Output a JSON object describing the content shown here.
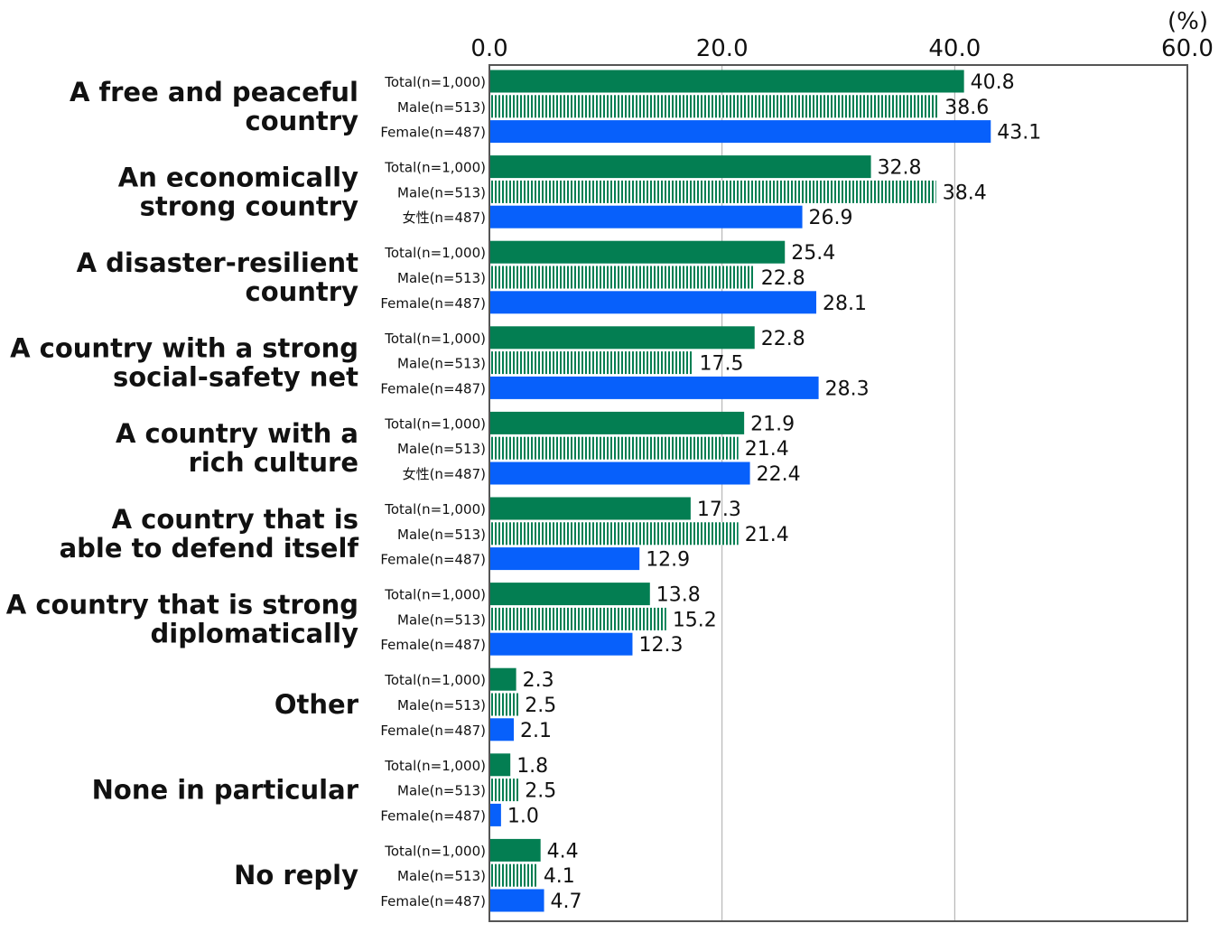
{
  "chart_data": {
    "type": "bar",
    "orientation": "horizontal",
    "unit": "(%)",
    "xlim": [
      0,
      60
    ],
    "ticks": [
      "0.0",
      "20.0",
      "40.0",
      "60.0"
    ],
    "tick_values": [
      0,
      20,
      40,
      60
    ],
    "grid": true,
    "colors": {
      "total": "#037e52",
      "male": "#037e52",
      "female": "#0760fb"
    },
    "categories": [
      {
        "label_lines": [
          "A free and peaceful",
          "country"
        ],
        "rows": [
          {
            "group": "total",
            "label": "Total(n=1,000)",
            "value": 40.8,
            "value_text": "40.8"
          },
          {
            "group": "male",
            "label": "Male(n=513)",
            "value": 38.6,
            "value_text": "38.6"
          },
          {
            "group": "female",
            "label": "Female(n=487)",
            "value": 43.1,
            "value_text": "43.1"
          }
        ]
      },
      {
        "label_lines": [
          "An economically",
          "strong country"
        ],
        "rows": [
          {
            "group": "total",
            "label": "Total(n=1,000)",
            "value": 32.8,
            "value_text": "32.8"
          },
          {
            "group": "male",
            "label": "Male(n=513)",
            "value": 38.4,
            "value_text": "38.4"
          },
          {
            "group": "female",
            "label": "女性(n=487)",
            "value": 26.9,
            "value_text": "26.9"
          }
        ]
      },
      {
        "label_lines": [
          "A disaster-resilient",
          "country"
        ],
        "rows": [
          {
            "group": "total",
            "label": "Total(n=1,000)",
            "value": 25.4,
            "value_text": "25.4"
          },
          {
            "group": "male",
            "label": "Male(n=513)",
            "value": 22.8,
            "value_text": "22.8"
          },
          {
            "group": "female",
            "label": "Female(n=487)",
            "value": 28.1,
            "value_text": "28.1"
          }
        ]
      },
      {
        "label_lines": [
          "A country with a strong",
          "social-safety net"
        ],
        "rows": [
          {
            "group": "total",
            "label": "Total(n=1,000)",
            "value": 22.8,
            "value_text": "22.8"
          },
          {
            "group": "male",
            "label": "Male(n=513)",
            "value": 17.5,
            "value_text": "17.5"
          },
          {
            "group": "female",
            "label": "Female(n=487)",
            "value": 28.3,
            "value_text": "28.3"
          }
        ]
      },
      {
        "label_lines": [
          "A country with a",
          "rich culture"
        ],
        "rows": [
          {
            "group": "total",
            "label": "Total(n=1,000)",
            "value": 21.9,
            "value_text": "21.9"
          },
          {
            "group": "male",
            "label": "Male(n=513)",
            "value": 21.4,
            "value_text": "21.4"
          },
          {
            "group": "female",
            "label": "女性(n=487)",
            "value": 22.4,
            "value_text": "22.4"
          }
        ]
      },
      {
        "label_lines": [
          "A country that is",
          "able to defend itself"
        ],
        "rows": [
          {
            "group": "total",
            "label": "Total(n=1,000)",
            "value": 17.3,
            "value_text": "17.3"
          },
          {
            "group": "male",
            "label": "Male(n=513)",
            "value": 21.4,
            "value_text": "21.4"
          },
          {
            "group": "female",
            "label": "Female(n=487)",
            "value": 12.9,
            "value_text": "12.9"
          }
        ]
      },
      {
        "label_lines": [
          "A country that is strong",
          "diplomatically"
        ],
        "rows": [
          {
            "group": "total",
            "label": "Total(n=1,000)",
            "value": 13.8,
            "value_text": "13.8"
          },
          {
            "group": "male",
            "label": "Male(n=513)",
            "value": 15.2,
            "value_text": "15.2"
          },
          {
            "group": "female",
            "label": "Female(n=487)",
            "value": 12.3,
            "value_text": "12.3"
          }
        ]
      },
      {
        "label_lines": [
          "Other"
        ],
        "rows": [
          {
            "group": "total",
            "label": "Total(n=1,000)",
            "value": 2.3,
            "value_text": "2.3"
          },
          {
            "group": "male",
            "label": "Male(n=513)",
            "value": 2.5,
            "value_text": "2.5"
          },
          {
            "group": "female",
            "label": "Female(n=487)",
            "value": 2.1,
            "value_text": "2.1"
          }
        ]
      },
      {
        "label_lines": [
          "None in particular"
        ],
        "rows": [
          {
            "group": "total",
            "label": "Total(n=1,000)",
            "value": 1.8,
            "value_text": "1.8"
          },
          {
            "group": "male",
            "label": "Male(n=513)",
            "value": 2.5,
            "value_text": "2.5"
          },
          {
            "group": "female",
            "label": "Female(n=487)",
            "value": 1.0,
            "value_text": "1.0"
          }
        ]
      },
      {
        "label_lines": [
          "No reply"
        ],
        "rows": [
          {
            "group": "total",
            "label": "Total(n=1,000)",
            "value": 4.4,
            "value_text": "4.4"
          },
          {
            "group": "male",
            "label": "Male(n=513)",
            "value": 4.1,
            "value_text": "4.1"
          },
          {
            "group": "female",
            "label": "Female(n=487)",
            "value": 4.7,
            "value_text": "4.7"
          }
        ]
      }
    ]
  }
}
